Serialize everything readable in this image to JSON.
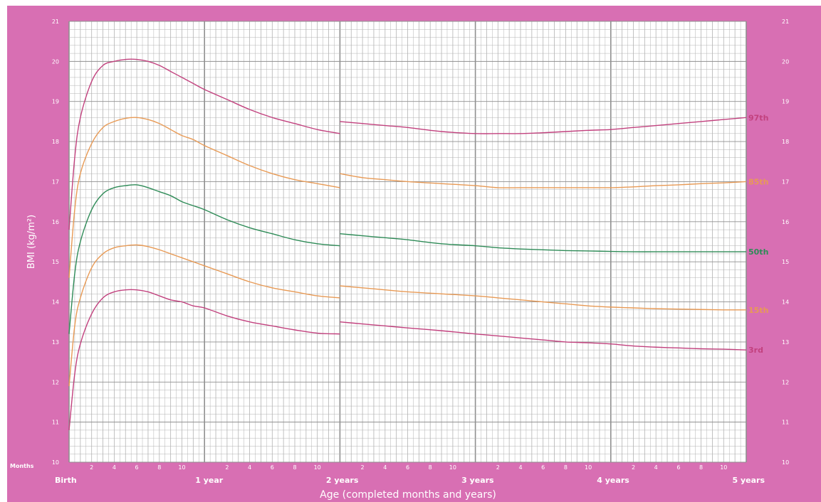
{
  "chart_data": {
    "type": "line",
    "title": "",
    "xlabel": "Age (completed months and years)",
    "ylabel": "BMI (kg/m²)",
    "xlim": [
      0,
      60
    ],
    "ylim": [
      10,
      21
    ],
    "y_ticks": [
      10,
      11,
      12,
      13,
      14,
      15,
      16,
      17,
      18,
      19,
      20,
      21
    ],
    "months_label": "Months",
    "month_ticks": [
      "2",
      "4",
      "6",
      "8",
      "10"
    ],
    "x_major_labels": [
      {
        "x": 0,
        "label": "Birth"
      },
      {
        "x": 12,
        "label": "1 year"
      },
      {
        "x": 24,
        "label": "2 years"
      },
      {
        "x": 36,
        "label": "3 years"
      },
      {
        "x": 48,
        "label": "4 years"
      },
      {
        "x": 60,
        "label": "5 years"
      }
    ],
    "grid": true,
    "colors": {
      "background": "#d86fb3",
      "grid": "#b3b3b3",
      "major_grid": "#8f8f8f"
    },
    "series": [
      {
        "name": "97th",
        "color": "#c2417e",
        "segments": [
          [
            [
              0,
              15.8
            ],
            [
              0.5,
              17.6
            ],
            [
              1,
              18.6
            ],
            [
              2,
              19.5
            ],
            [
              3,
              19.9
            ],
            [
              4,
              20.0
            ],
            [
              5,
              20.05
            ],
            [
              6,
              20.05
            ],
            [
              7,
              20.0
            ],
            [
              8,
              19.9
            ],
            [
              9,
              19.75
            ],
            [
              10,
              19.6
            ],
            [
              11,
              19.45
            ],
            [
              12,
              19.3
            ],
            [
              14,
              19.05
            ],
            [
              16,
              18.8
            ],
            [
              18,
              18.6
            ],
            [
              20,
              18.45
            ],
            [
              22,
              18.3
            ],
            [
              24,
              18.2
            ]
          ],
          [
            [
              24,
              18.5
            ],
            [
              26,
              18.45
            ],
            [
              28,
              18.4
            ],
            [
              30,
              18.35
            ],
            [
              33,
              18.25
            ],
            [
              36,
              18.2
            ],
            [
              38,
              18.2
            ],
            [
              40,
              18.2
            ],
            [
              42,
              18.22
            ],
            [
              44,
              18.25
            ],
            [
              46,
              18.28
            ],
            [
              48,
              18.3
            ],
            [
              50,
              18.35
            ],
            [
              52,
              18.4
            ],
            [
              54,
              18.45
            ],
            [
              56,
              18.5
            ],
            [
              58,
              18.55
            ],
            [
              60,
              18.6
            ]
          ]
        ]
      },
      {
        "name": "85th",
        "color": "#e89a55",
        "segments": [
          [
            [
              0,
              14.6
            ],
            [
              0.5,
              16.3
            ],
            [
              1,
              17.2
            ],
            [
              2,
              17.95
            ],
            [
              3,
              18.35
            ],
            [
              4,
              18.5
            ],
            [
              5,
              18.58
            ],
            [
              6,
              18.6
            ],
            [
              7,
              18.55
            ],
            [
              8,
              18.45
            ],
            [
              9,
              18.3
            ],
            [
              10,
              18.15
            ],
            [
              11,
              18.05
            ],
            [
              12,
              17.9
            ],
            [
              14,
              17.65
            ],
            [
              16,
              17.4
            ],
            [
              18,
              17.2
            ],
            [
              20,
              17.05
            ],
            [
              22,
              16.95
            ],
            [
              24,
              16.85
            ]
          ],
          [
            [
              24,
              17.2
            ],
            [
              26,
              17.1
            ],
            [
              28,
              17.05
            ],
            [
              30,
              17.0
            ],
            [
              33,
              16.95
            ],
            [
              36,
              16.9
            ],
            [
              38,
              16.85
            ],
            [
              40,
              16.85
            ],
            [
              42,
              16.85
            ],
            [
              44,
              16.85
            ],
            [
              46,
              16.85
            ],
            [
              48,
              16.85
            ],
            [
              50,
              16.87
            ],
            [
              52,
              16.9
            ],
            [
              54,
              16.92
            ],
            [
              56,
              16.95
            ],
            [
              58,
              16.97
            ],
            [
              60,
              17.0
            ]
          ]
        ]
      },
      {
        "name": "50th",
        "color": "#2e8b57",
        "segments": [
          [
            [
              0,
              13.2
            ],
            [
              0.5,
              14.7
            ],
            [
              1,
              15.5
            ],
            [
              2,
              16.3
            ],
            [
              3,
              16.7
            ],
            [
              4,
              16.85
            ],
            [
              5,
              16.9
            ],
            [
              6,
              16.92
            ],
            [
              7,
              16.85
            ],
            [
              8,
              16.75
            ],
            [
              9,
              16.65
            ],
            [
              10,
              16.5
            ],
            [
              11,
              16.4
            ],
            [
              12,
              16.3
            ],
            [
              14,
              16.05
            ],
            [
              16,
              15.85
            ],
            [
              18,
              15.7
            ],
            [
              20,
              15.55
            ],
            [
              22,
              15.45
            ],
            [
              24,
              15.4
            ]
          ],
          [
            [
              24,
              15.7
            ],
            [
              26,
              15.65
            ],
            [
              28,
              15.6
            ],
            [
              30,
              15.55
            ],
            [
              33,
              15.45
            ],
            [
              36,
              15.4
            ],
            [
              38,
              15.35
            ],
            [
              40,
              15.32
            ],
            [
              42,
              15.3
            ],
            [
              44,
              15.28
            ],
            [
              46,
              15.27
            ],
            [
              48,
              15.26
            ],
            [
              50,
              15.25
            ],
            [
              52,
              15.25
            ],
            [
              54,
              15.25
            ],
            [
              56,
              15.25
            ],
            [
              58,
              15.25
            ],
            [
              60,
              15.25
            ]
          ]
        ]
      },
      {
        "name": "15th",
        "color": "#e89a55",
        "segments": [
          [
            [
              0,
              11.9
            ],
            [
              0.5,
              13.4
            ],
            [
              1,
              14.1
            ],
            [
              2,
              14.85
            ],
            [
              3,
              15.2
            ],
            [
              4,
              15.35
            ],
            [
              5,
              15.4
            ],
            [
              6,
              15.42
            ],
            [
              7,
              15.38
            ],
            [
              8,
              15.3
            ],
            [
              9,
              15.2
            ],
            [
              10,
              15.1
            ],
            [
              11,
              15.0
            ],
            [
              12,
              14.9
            ],
            [
              14,
              14.7
            ],
            [
              16,
              14.5
            ],
            [
              18,
              14.35
            ],
            [
              20,
              14.25
            ],
            [
              22,
              14.15
            ],
            [
              24,
              14.1
            ]
          ],
          [
            [
              24,
              14.4
            ],
            [
              26,
              14.35
            ],
            [
              28,
              14.3
            ],
            [
              30,
              14.25
            ],
            [
              33,
              14.2
            ],
            [
              36,
              14.15
            ],
            [
              38,
              14.1
            ],
            [
              40,
              14.05
            ],
            [
              42,
              14.0
            ],
            [
              44,
              13.95
            ],
            [
              46,
              13.9
            ],
            [
              48,
              13.87
            ],
            [
              50,
              13.85
            ],
            [
              52,
              13.83
            ],
            [
              54,
              13.82
            ],
            [
              56,
              13.81
            ],
            [
              58,
              13.8
            ],
            [
              60,
              13.8
            ]
          ]
        ]
      },
      {
        "name": "3rd",
        "color": "#c2417e",
        "segments": [
          [
            [
              0,
              10.8
            ],
            [
              0.5,
              12.2
            ],
            [
              1,
              12.95
            ],
            [
              2,
              13.7
            ],
            [
              3,
              14.1
            ],
            [
              4,
              14.25
            ],
            [
              5,
              14.3
            ],
            [
              6,
              14.3
            ],
            [
              7,
              14.25
            ],
            [
              8,
              14.15
            ],
            [
              9,
              14.05
            ],
            [
              10,
              14.0
            ],
            [
              11,
              13.9
            ],
            [
              12,
              13.85
            ],
            [
              14,
              13.65
            ],
            [
              16,
              13.5
            ],
            [
              18,
              13.4
            ],
            [
              20,
              13.3
            ],
            [
              22,
              13.22
            ],
            [
              24,
              13.2
            ]
          ],
          [
            [
              24,
              13.5
            ],
            [
              26,
              13.45
            ],
            [
              28,
              13.4
            ],
            [
              30,
              13.35
            ],
            [
              33,
              13.28
            ],
            [
              36,
              13.2
            ],
            [
              38,
              13.15
            ],
            [
              40,
              13.1
            ],
            [
              42,
              13.05
            ],
            [
              44,
              13.0
            ],
            [
              46,
              12.98
            ],
            [
              48,
              12.95
            ],
            [
              50,
              12.9
            ],
            [
              52,
              12.87
            ],
            [
              54,
              12.85
            ],
            [
              56,
              12.83
            ],
            [
              58,
              12.82
            ],
            [
              60,
              12.8
            ]
          ]
        ]
      }
    ]
  }
}
